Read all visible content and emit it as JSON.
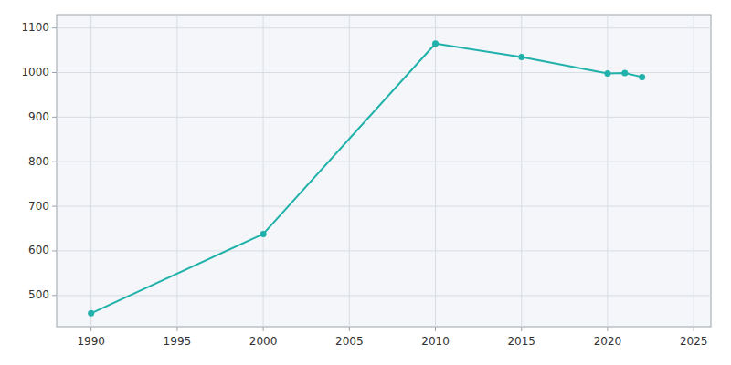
{
  "chart_data": {
    "type": "line",
    "x": [
      1990,
      2000,
      2010,
      2015,
      2020,
      2021,
      2022
    ],
    "values": [
      460,
      638,
      1065,
      1035,
      998,
      999,
      990
    ],
    "color": "#20b2aa",
    "marker": "circle",
    "xlim": [
      1988,
      2026
    ],
    "ylim": [
      430,
      1130
    ],
    "xticks": [
      1990,
      1995,
      2000,
      2005,
      2010,
      2015,
      2020,
      2025
    ],
    "yticks": [
      500,
      600,
      700,
      800,
      900,
      1000,
      1100
    ],
    "grid": true
  }
}
